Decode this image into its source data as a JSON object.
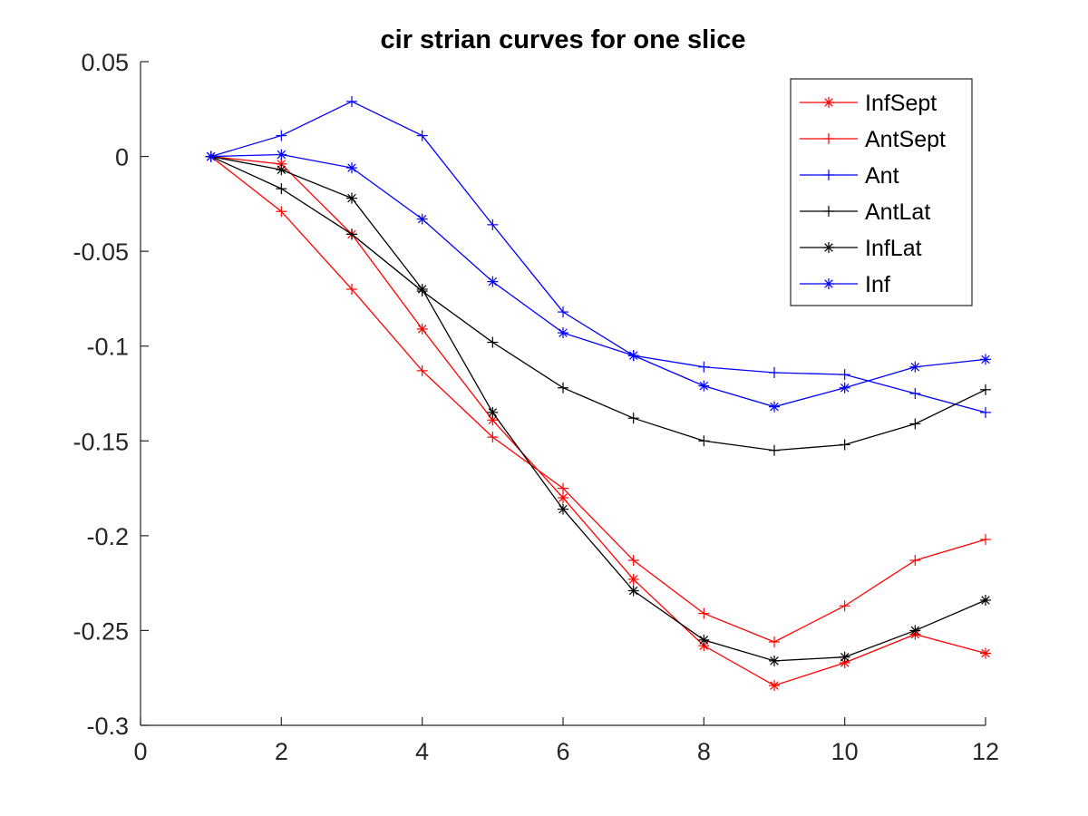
{
  "chart_data": {
    "type": "line",
    "title": "cir strian curves for one slice",
    "xlabel": "",
    "ylabel": "",
    "xlim": [
      0,
      12
    ],
    "ylim": [
      -0.3,
      0.05
    ],
    "xticks": [
      0,
      2,
      4,
      6,
      8,
      10,
      12
    ],
    "yticks": [
      0.05,
      0,
      -0.05,
      -0.1,
      -0.15,
      -0.2,
      -0.25,
      -0.3
    ],
    "ytick_labels": [
      "0.05",
      "0",
      "-0.05",
      "-0.1",
      "-0.15",
      "-0.2",
      "-0.25",
      "-0.3"
    ],
    "grid": false,
    "legend_position": "top-right",
    "x": [
      1,
      2,
      3,
      4,
      5,
      6,
      7,
      8,
      9,
      10,
      11,
      12
    ],
    "series": [
      {
        "name": "InfSept",
        "color": "#ff0000",
        "marker": "asterisk",
        "values": [
          0,
          -0.004,
          -0.041,
          -0.091,
          -0.139,
          -0.18,
          -0.223,
          -0.258,
          -0.279,
          -0.267,
          -0.252,
          -0.262
        ]
      },
      {
        "name": "AntSept",
        "color": "#ff0000",
        "marker": "plus",
        "values": [
          0,
          -0.029,
          -0.07,
          -0.113,
          -0.148,
          -0.175,
          -0.213,
          -0.241,
          -0.256,
          -0.237,
          -0.213,
          -0.202
        ]
      },
      {
        "name": "Ant",
        "color": "#0000ff",
        "marker": "plus",
        "values": [
          0,
          0.011,
          0.029,
          0.011,
          -0.036,
          -0.082,
          -0.105,
          -0.111,
          -0.114,
          -0.115,
          -0.125,
          -0.135
        ]
      },
      {
        "name": "AntLat",
        "color": "#000000",
        "marker": "plus",
        "values": [
          0,
          -0.017,
          -0.041,
          -0.071,
          -0.098,
          -0.122,
          -0.138,
          -0.15,
          -0.155,
          -0.152,
          -0.141,
          -0.123
        ]
      },
      {
        "name": "InfLat",
        "color": "#000000",
        "marker": "asterisk",
        "values": [
          0,
          -0.007,
          -0.022,
          -0.07,
          -0.135,
          -0.186,
          -0.229,
          -0.255,
          -0.266,
          -0.264,
          -0.25,
          -0.234
        ]
      },
      {
        "name": "Inf",
        "color": "#0000ff",
        "marker": "asterisk",
        "values": [
          0,
          0.001,
          -0.006,
          -0.033,
          -0.066,
          -0.093,
          -0.105,
          -0.121,
          -0.132,
          -0.122,
          -0.111,
          -0.107
        ]
      }
    ]
  }
}
